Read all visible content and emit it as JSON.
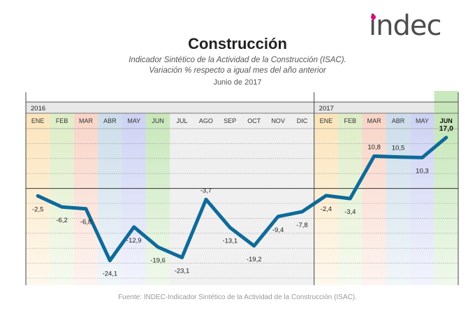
{
  "logo": {
    "text": "indec",
    "accent_color": "#e5007d"
  },
  "header": {
    "title": "Construcción",
    "subtitle_line1": "Indicador Sintético de la Actividad de la Construcción (ISAC).",
    "subtitle_line2": "Variación % respecto a igual mes del año anterior",
    "date": "Junio de 2017"
  },
  "footer": {
    "source": "Fuente: INDEC-Indicador Sintético de la Actividad de la Construcción (ISAC)."
  },
  "chart_data": {
    "type": "line",
    "title": "Construcción",
    "years": [
      {
        "label": "2016",
        "start_index": 0
      },
      {
        "label": "2017",
        "start_index": 12
      }
    ],
    "categories": [
      "ENE",
      "FEB",
      "MAR",
      "ABR",
      "MAY",
      "JUN",
      "JUL",
      "AGO",
      "SEP",
      "OCT",
      "NOV",
      "DIC",
      "ENE",
      "FEB",
      "MAR",
      "ABR",
      "MAY",
      "JUN"
    ],
    "values": [
      -2.5,
      -6.2,
      -6.8,
      -24.1,
      -12.9,
      -19.6,
      -23.1,
      -3.7,
      -13.1,
      -19.2,
      -9.4,
      -7.8,
      -2.4,
      -3.4,
      10.8,
      10.5,
      10.3,
      17.0
    ],
    "value_labels": [
      "-2,5",
      "-6,2",
      "-6,8",
      "-24,1",
      "-12,9",
      "-19,6",
      "-23,1",
      "-3,7",
      "-13,1",
      "-19,2",
      "-9,4",
      "-7,8",
      "-2,4",
      "-3,4",
      "10,8",
      "10,5",
      "10,3",
      "17,0"
    ],
    "label_position": [
      "below",
      "below",
      "below",
      "below",
      "below",
      "below",
      "below",
      "above",
      "below",
      "below",
      "below",
      "below",
      "below",
      "below",
      "above",
      "above",
      "below",
      "above"
    ],
    "band_colors": [
      "#fbe3b8",
      "#dcecc4",
      "#f8d2c4",
      "#c9dbe9",
      "#cbd0f3",
      "#c4e6b6"
    ],
    "line_color": "#0e6a99",
    "ylim": [
      -30,
      20
    ],
    "highlight_index": 17
  }
}
